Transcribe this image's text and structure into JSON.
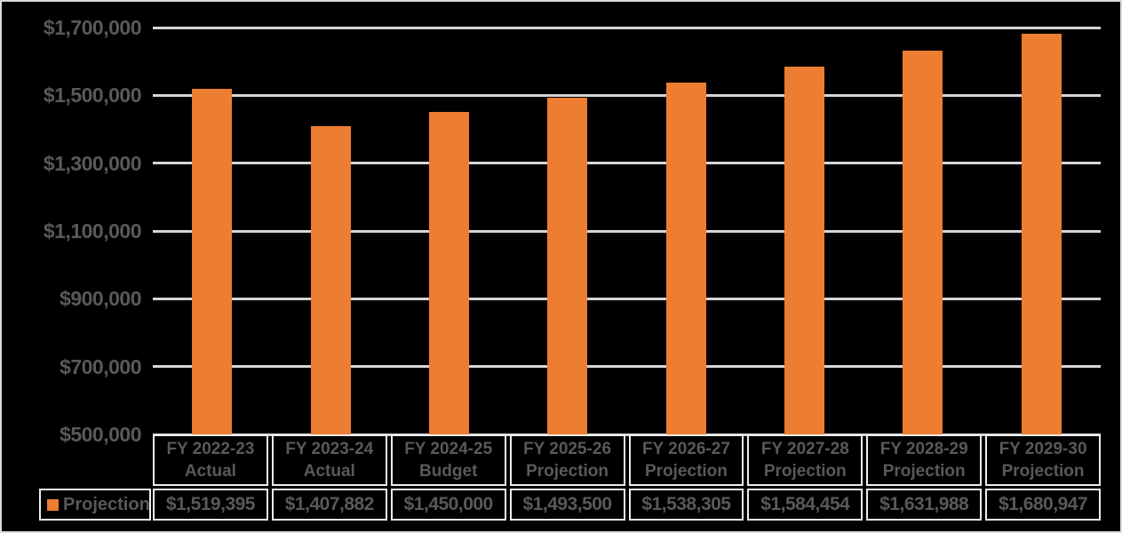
{
  "chart_data": {
    "type": "bar",
    "title": "",
    "xlabel": "",
    "ylabel": "",
    "categories": [
      {
        "line1": "FY 2022-23",
        "line2": "Actual"
      },
      {
        "line1": "FY 2023-24",
        "line2": "Actual"
      },
      {
        "line1": "FY 2024-25",
        "line2": "Budget"
      },
      {
        "line1": "FY 2025-26",
        "line2": "Projection"
      },
      {
        "line1": "FY 2026-27",
        "line2": "Projection"
      },
      {
        "line1": "FY 2027-28",
        "line2": "Projection"
      },
      {
        "line1": "FY 2028-29",
        "line2": "Projection"
      },
      {
        "line1": "FY 2029-30",
        "line2": "Projection"
      }
    ],
    "series": [
      {
        "name": "Projection",
        "color": "#ED7D31",
        "values": [
          1519395,
          1407882,
          1450000,
          1493500,
          1538305,
          1584454,
          1631988,
          1680947
        ],
        "value_labels": [
          "$1,519,395",
          "$1,407,882",
          "$1,450,000",
          "$1,493,500",
          "$1,538,305",
          "$1,584,454",
          "$1,631,988",
          "$1,680,947"
        ]
      }
    ],
    "y_axis": {
      "min": 500000,
      "max": 1700000,
      "step": 200000,
      "ticks": [
        {
          "value": 500000,
          "label": "$500,000"
        },
        {
          "value": 700000,
          "label": "$700,000"
        },
        {
          "value": 900000,
          "label": "$900,000"
        },
        {
          "value": 1100000,
          "label": "$1,100,000"
        },
        {
          "value": 1300000,
          "label": "$1,300,000"
        },
        {
          "value": 1500000,
          "label": "$1,500,000"
        },
        {
          "value": 1700000,
          "label": "$1,700,000"
        }
      ]
    },
    "legend": {
      "label": "Projection",
      "swatch_color": "#ED7D31",
      "position": "bottom-left-table"
    },
    "grid": true,
    "data_table_attached": true,
    "colors": {
      "background": "#000000",
      "bar": "#ED7D31",
      "gridline": "#D6D6D6",
      "cell_border": "#EDEDED",
      "text": "#595959",
      "frame_border": "#D9D9D9"
    }
  }
}
